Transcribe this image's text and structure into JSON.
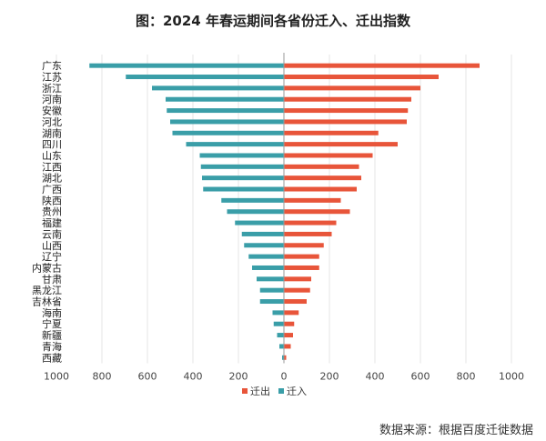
{
  "chart_data": {
    "type": "bar",
    "title": "图：2024 年春运期间各省份迁入、迁出指数",
    "categories": [
      "广东",
      "江苏",
      "浙江",
      "河南",
      "安徽",
      "河北",
      "湖南",
      "四川",
      "山东",
      "江西",
      "湖北",
      "广西",
      "陕西",
      "贵州",
      "福建",
      "云南",
      "山西",
      "辽宁",
      "内蒙古",
      "甘肃",
      "黑龙江",
      "吉林省",
      "海南",
      "宁夏",
      "新疆",
      "青海",
      "西藏"
    ],
    "series": [
      {
        "name": "迁出",
        "color": "#e8553a",
        "values": [
          860,
          680,
          600,
          560,
          545,
          540,
          415,
          500,
          390,
          330,
          340,
          320,
          250,
          290,
          230,
          210,
          175,
          155,
          155,
          120,
          115,
          100,
          65,
          45,
          40,
          30,
          10
        ]
      },
      {
        "name": "迁入",
        "color": "#3a9ea8",
        "values": [
          855,
          695,
          580,
          520,
          515,
          500,
          490,
          430,
          370,
          365,
          360,
          355,
          275,
          250,
          215,
          185,
          175,
          155,
          140,
          120,
          105,
          105,
          50,
          45,
          30,
          20,
          8
        ]
      }
    ],
    "x_axis": {
      "ticks": [
        "1000",
        "800",
        "600",
        "400",
        "200",
        "0",
        "200",
        "400",
        "600",
        "800",
        "1000"
      ],
      "range": [
        -1000,
        1000
      ]
    },
    "grid": true,
    "legend_position": "bottom"
  },
  "source_note": "数据来源：根据百度迁徙数据"
}
